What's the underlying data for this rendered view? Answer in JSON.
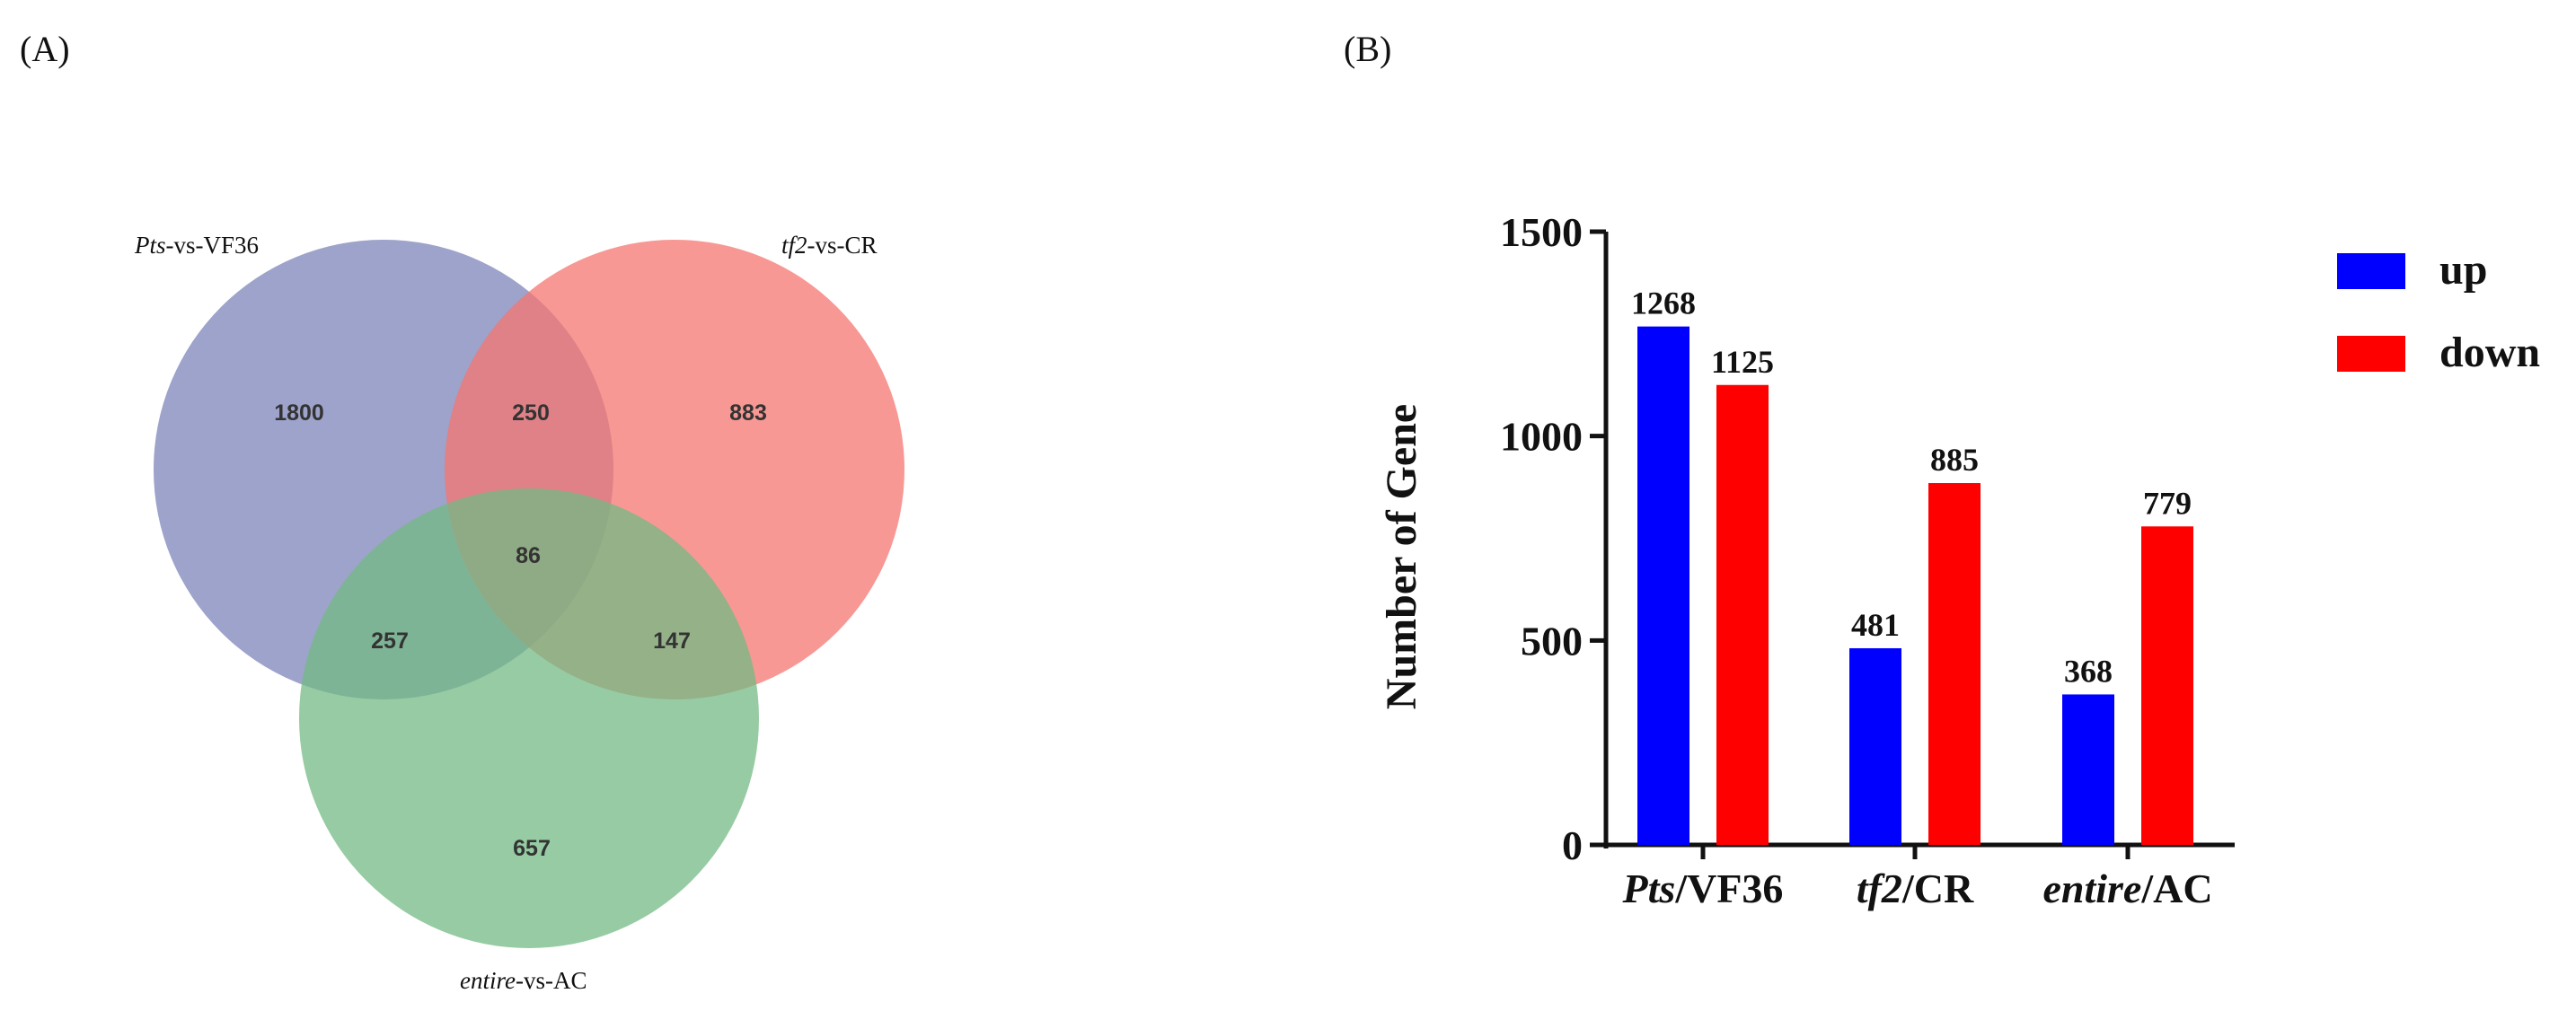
{
  "panel_a": {
    "label": "(A)",
    "sets": [
      {
        "italic": "Pts",
        "suffix": "-vs-VF36",
        "color": "#7c84b8"
      },
      {
        "italic": "tf2",
        "suffix": "-vs-CR",
        "color": "#f67670"
      },
      {
        "italic": "entire",
        "suffix": "-vs-AC",
        "color": "#74b984"
      }
    ],
    "counts": {
      "only_pts": "1800",
      "pts_tf2": "250",
      "only_tf2": "883",
      "all_three": "86",
      "pts_entire": "257",
      "tf2_entire": "147",
      "only_entire": "657"
    }
  },
  "panel_b": {
    "label": "(B)"
  },
  "chart_data": [
    {
      "type": "venn",
      "sets": [
        "Pts-vs-VF36",
        "tf2-vs-CR",
        "entire-vs-AC"
      ],
      "regions": [
        {
          "sets": [
            "Pts-vs-VF36"
          ],
          "value": 1800
        },
        {
          "sets": [
            "tf2-vs-CR"
          ],
          "value": 883
        },
        {
          "sets": [
            "entire-vs-AC"
          ],
          "value": 657
        },
        {
          "sets": [
            "Pts-vs-VF36",
            "tf2-vs-CR"
          ],
          "value": 250
        },
        {
          "sets": [
            "Pts-vs-VF36",
            "entire-vs-AC"
          ],
          "value": 257
        },
        {
          "sets": [
            "tf2-vs-CR",
            "entire-vs-AC"
          ],
          "value": 147
        },
        {
          "sets": [
            "Pts-vs-VF36",
            "tf2-vs-CR",
            "entire-vs-AC"
          ],
          "value": 86
        }
      ]
    },
    {
      "type": "bar",
      "categories": [
        {
          "italic": "Pts",
          "suffix": "/VF36"
        },
        {
          "italic": "tf2",
          "suffix": "/CR"
        },
        {
          "italic": "entire",
          "suffix": "/AC"
        }
      ],
      "series": [
        {
          "name": "up",
          "color": "#0000ff",
          "values": [
            1268,
            481,
            368
          ]
        },
        {
          "name": "down",
          "color": "#ff0000",
          "values": [
            1125,
            885,
            779
          ]
        }
      ],
      "title": "",
      "xlabel": "",
      "ylabel": "Number of Gene",
      "ylim": [
        0,
        1500
      ],
      "yticks": [
        0,
        500,
        1000,
        1500
      ],
      "legend": "top-right"
    }
  ]
}
